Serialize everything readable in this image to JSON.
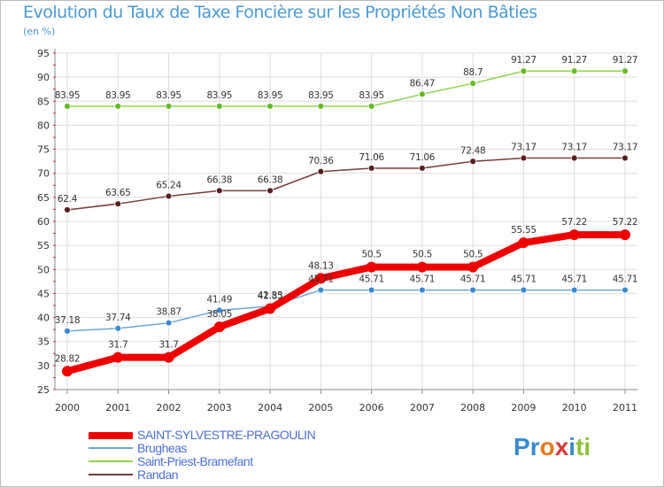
{
  "colors": {
    "background": "#ffffff",
    "title": "#4a9ad4",
    "grid": "#dddddd",
    "axis": "#888888",
    "axis_minor": "#cc3333"
  },
  "chart_data": {
    "type": "line",
    "title": "Evolution du Taux de Taxe Foncière sur les Propriétés Non Bâties",
    "ylabel": "(en %)",
    "xlabel": "",
    "ylim": [
      25,
      95
    ],
    "yticks": [
      "25",
      "30",
      "35",
      "40",
      "45",
      "50",
      "55",
      "60",
      "65",
      "70",
      "75",
      "80",
      "85",
      "90",
      "95"
    ],
    "categories": [
      "2000",
      "2001",
      "2002",
      "2003",
      "2004",
      "2005",
      "2006",
      "2007",
      "2008",
      "2009",
      "2010",
      "2011"
    ],
    "grid": true,
    "legend_position": "bottom-left",
    "series": [
      {
        "name": "Saint-Priest-Bramefant",
        "color": "#8fd44a",
        "marker_color": "#66bb22",
        "weight": "thin",
        "values": [
          83.95,
          83.95,
          83.95,
          83.95,
          83.95,
          83.95,
          83.95,
          86.47,
          88.7,
          91.27,
          91.27,
          91.27
        ],
        "labels": [
          "83.95",
          "83.95",
          "83.95",
          "83.95",
          "83.95",
          "83.95",
          "83.95",
          "86.47",
          "88.7",
          "91.27",
          "91.27",
          "91.27"
        ]
      },
      {
        "name": "Randan",
        "color": "#7a3a3a",
        "marker_color": "#5a1e1e",
        "weight": "thin",
        "values": [
          62.4,
          63.65,
          65.24,
          66.38,
          66.38,
          70.36,
          71.06,
          71.06,
          72.48,
          73.17,
          73.17,
          73.17
        ],
        "labels": [
          "62.4",
          "63.65",
          "65.24",
          "66.38",
          "66.38",
          "70.36",
          "71.06",
          "71.06",
          "72.48",
          "73.17",
          "73.17",
          "73.17"
        ]
      },
      {
        "name": "Brugheas",
        "color": "#6aa8d8",
        "marker_color": "#3a8ad0",
        "weight": "thin",
        "values": [
          37.18,
          37.74,
          38.87,
          41.49,
          42.33,
          45.71,
          45.71,
          45.71,
          45.71,
          45.71,
          45.71,
          45.71
        ],
        "labels": [
          "37.18",
          "37.74",
          "38.87",
          "41.49",
          "42.33",
          "45.71",
          "45.71",
          "45.71",
          "45.71",
          "45.71",
          "45.71",
          "45.71"
        ]
      },
      {
        "name": "SAINT-SYLVESTRE-PRAGOULIN",
        "color": "#ee0000",
        "marker_color": "#ee0000",
        "weight": "thick",
        "values": [
          28.82,
          31.7,
          31.7,
          38.05,
          41.85,
          48.13,
          50.5,
          50.5,
          50.5,
          55.55,
          57.22,
          57.22
        ],
        "labels": [
          "28.82",
          "31.7",
          "31.7",
          "38.05",
          "41.85",
          "48.13",
          "50.5",
          "50.5",
          "50.5",
          "55.55",
          "57.22",
          "57.22"
        ]
      }
    ]
  },
  "legend": [
    {
      "label": "SAINT-SYLVESTRE-PRAGOULIN",
      "color": "#ee0000",
      "weight": "thick"
    },
    {
      "label": "Brugheas",
      "color": "#6aa8d8",
      "weight": "thin"
    },
    {
      "label": "Saint-Priest-Bramefant",
      "color": "#8fd44a",
      "weight": "thin"
    },
    {
      "label": "Randan",
      "color": "#7a3a3a",
      "weight": "thin"
    }
  ],
  "brand": {
    "letters": [
      "P",
      "r",
      "o",
      "x",
      "i",
      "t",
      "i"
    ],
    "colors": [
      "#3a8ad0",
      "#3a8ad0",
      "#e87a1e",
      "#d43a3a",
      "#3a8ad0",
      "#8fc43a",
      "#8fc43a"
    ]
  }
}
